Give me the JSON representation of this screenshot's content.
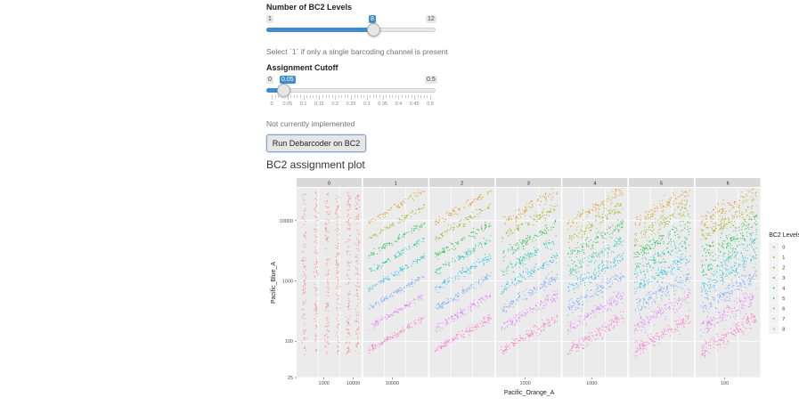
{
  "bc2_levels": {
    "label": "Number of BC2 Levels",
    "min": "1",
    "max": "12",
    "value": "8",
    "fraction": 0.6364,
    "help": "Select `1` if only a single barcoding channel is present"
  },
  "assignment_cutoff": {
    "label": "Assignment Cutoff",
    "min": "0",
    "max": "0.5",
    "value": "0.05",
    "fraction": 0.1,
    "ticks": [
      "0",
      "0.05",
      "0.1",
      "0.15",
      "0.2",
      "0.25",
      "0.3",
      "0.35",
      "0.4",
      "0.45",
      "0.5"
    ],
    "help": "Not currently implemented"
  },
  "run_button": {
    "label": "Run Debarcoder on BC2"
  },
  "plot_heading": "BC2 assignment plot",
  "chart_data": {
    "type": "scatter",
    "facets": [
      "0",
      "1",
      "2",
      "3",
      "4",
      "5",
      "6"
    ],
    "xlabel": "Pacific_Orange_A",
    "ylabel": "Pacific_Blue_A",
    "x_scale": "log",
    "y_scale": "log",
    "y_ticks": [
      "25",
      "100",
      "1000",
      "10000"
    ],
    "facet_x_ticks": [
      [
        "1000",
        "10000"
      ],
      [
        "10000"
      ],
      [],
      [
        "1000"
      ],
      [
        "1000"
      ],
      [],
      [
        "100"
      ]
    ],
    "legend": {
      "title": "BC2 Levels",
      "entries": [
        "0",
        "1",
        "2",
        "3",
        "4",
        "5",
        "6",
        "7",
        "8"
      ],
      "colors": [
        "#F8766D",
        "#D39200",
        "#93AA00",
        "#00BA38",
        "#00C19F",
        "#00B9E3",
        "#619CFF",
        "#DB72FB",
        "#FF61C3"
      ],
      "placement": "right"
    },
    "grid": true,
    "panel_background": "#ebebeb",
    "strip_background": "#d9d9d9"
  }
}
